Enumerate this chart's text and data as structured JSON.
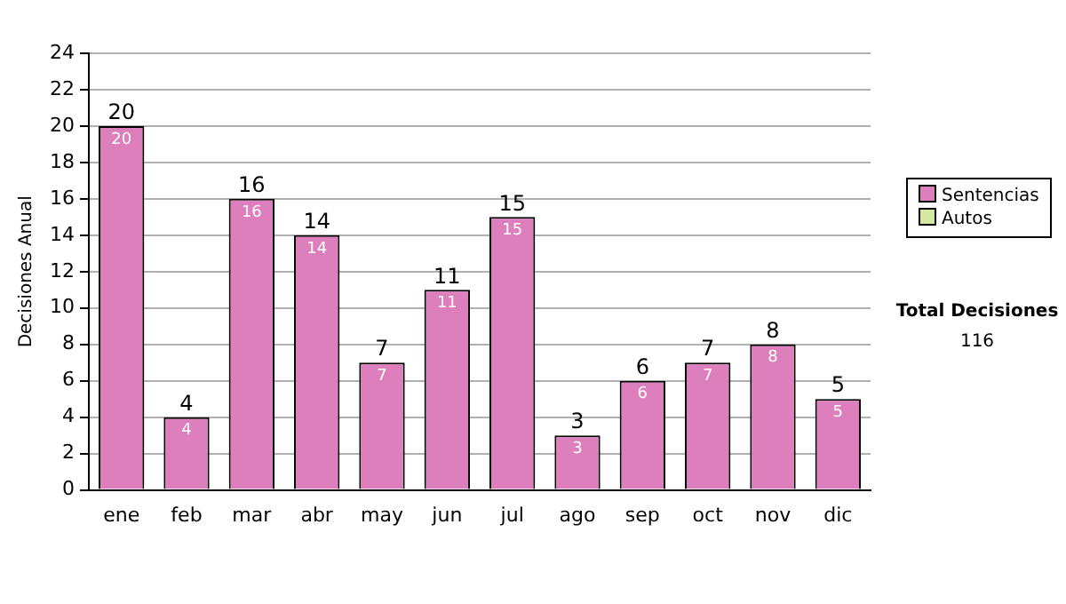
{
  "chart_data": {
    "type": "bar",
    "ylabel": "Decisiones Anual",
    "categories": [
      "ene",
      "feb",
      "mar",
      "abr",
      "may",
      "jun",
      "jul",
      "ago",
      "sep",
      "oct",
      "nov",
      "dic"
    ],
    "series": [
      {
        "name": "Sentencias",
        "color": "#dd7fbd",
        "values": [
          20,
          4,
          16,
          14,
          7,
          11,
          15,
          3,
          6,
          7,
          8,
          5
        ]
      },
      {
        "name": "Autos",
        "color": "#d4e8a0",
        "values": [
          null,
          null,
          null,
          null,
          null,
          null,
          null,
          null,
          null,
          null,
          null,
          null
        ]
      }
    ],
    "stacked": true,
    "data_labels": true,
    "totals": [
      "20",
      "4",
      "16",
      "14",
      "7",
      "11",
      "15",
      "3",
      "6",
      "7",
      "8",
      "5"
    ],
    "ylim": [
      0,
      24
    ],
    "yticks": [
      0,
      2,
      4,
      6,
      8,
      10,
      12,
      14,
      16,
      18,
      20,
      22,
      24
    ],
    "grid": "y",
    "legend": "right",
    "annotations": [
      "Total Decisiones",
      "116"
    ]
  }
}
